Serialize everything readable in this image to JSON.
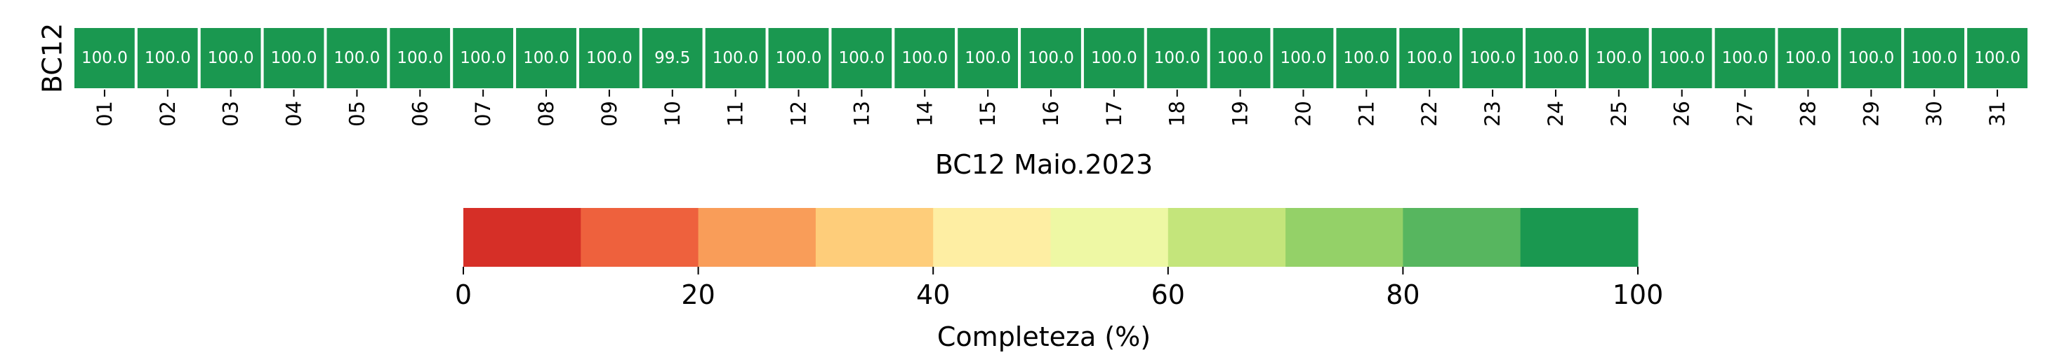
{
  "chart_data": [
    {
      "type": "heatmap",
      "ylabel": "BC12",
      "xlabel": "BC12 Maio.2023",
      "rows": [
        "BC12"
      ],
      "columns": [
        "01",
        "02",
        "03",
        "04",
        "05",
        "06",
        "07",
        "08",
        "09",
        "10",
        "11",
        "12",
        "13",
        "14",
        "15",
        "16",
        "17",
        "18",
        "19",
        "20",
        "21",
        "22",
        "23",
        "24",
        "25",
        "26",
        "27",
        "28",
        "29",
        "30",
        "31"
      ],
      "values": [
        [
          100.0,
          100.0,
          100.0,
          100.0,
          100.0,
          100.0,
          100.0,
          100.0,
          100.0,
          99.5,
          100.0,
          100.0,
          100.0,
          100.0,
          100.0,
          100.0,
          100.0,
          100.0,
          100.0,
          100.0,
          100.0,
          100.0,
          100.0,
          100.0,
          100.0,
          100.0,
          100.0,
          100.0,
          100.0,
          100.0,
          100.0
        ]
      ],
      "value_labels": [
        [
          "100.0",
          "100.0",
          "100.0",
          "100.0",
          "100.0",
          "100.0",
          "100.0",
          "100.0",
          "100.0",
          "99.5",
          "100.0",
          "100.0",
          "100.0",
          "100.0",
          "100.0",
          "100.0",
          "100.0",
          "100.0",
          "100.0",
          "100.0",
          "100.0",
          "100.0",
          "100.0",
          "100.0",
          "100.0",
          "100.0",
          "100.0",
          "100.0",
          "100.0",
          "100.0",
          "100.0"
        ]
      ],
      "colorbar": {
        "label": "Completeza (%)",
        "range": [
          0,
          100
        ],
        "ticks": [
          0,
          20,
          40,
          60,
          80,
          100
        ],
        "tick_labels": [
          "0",
          "20",
          "40",
          "60",
          "80",
          "100"
        ],
        "bins": 10,
        "colors": [
          "#d62f27",
          "#ee613d",
          "#f99d59",
          "#fecd7a",
          "#feeea3",
          "#eef8a4",
          "#c4e57b",
          "#94d168",
          "#57b65f",
          "#1a9850"
        ],
        "orientation": "horizontal"
      }
    }
  ]
}
